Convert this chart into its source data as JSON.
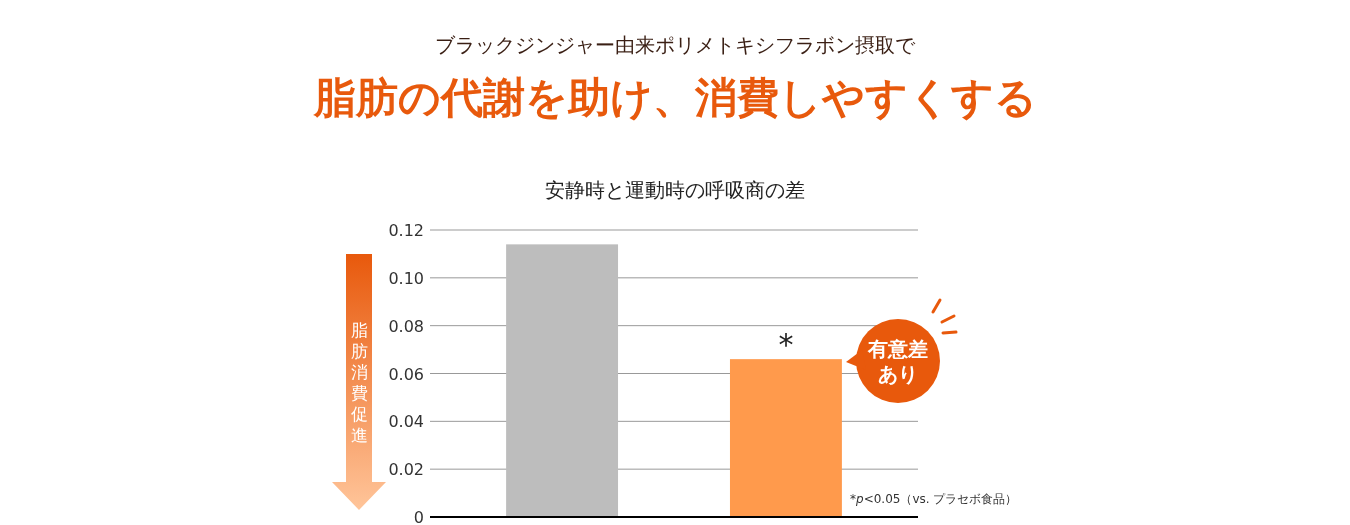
{
  "chart_data": {
    "type": "bar",
    "subtitle": "ブラックジンジャー由来ポリメトキシフラボン摂取で",
    "title": "脂肪の代謝を助け、消費しやすくする",
    "xlabel": "安静時と運動時の呼吸商の差",
    "ylabel": "脂肪消費促進",
    "categories": [
      null,
      null
    ],
    "values": [
      0.114,
      0.066
    ],
    "colors": [
      "#bdbdbd",
      "#ff9a4c"
    ],
    "ylim": [
      0,
      0.12
    ],
    "yticks": [
      {
        "value": 0,
        "label": "0"
      },
      0.02,
      0.04,
      0.06,
      {
        "value": 0.08,
        "label": "0.08"
      },
      {
        "value": 0.1,
        "label": "0.10"
      },
      0.12
    ],
    "grid": "y",
    "annotations": [
      "*",
      "有意差あり",
      "*p<0.05（vs. プラセボ食品）"
    ]
  }
}
